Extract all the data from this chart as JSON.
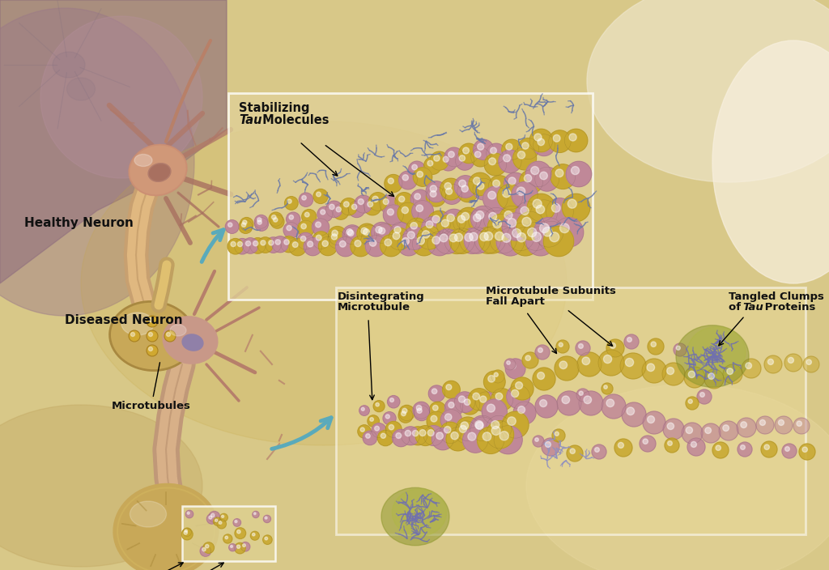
{
  "bg_main": "#d4b870",
  "bg_light": "#f0e8c8",
  "bg_purple": "#9a7888",
  "bg_cream": "#e8d898",
  "colors": {
    "yellow_sphere": "#c8a830",
    "yellow_sphere2": "#d4b840",
    "pink_sphere": "#c08898",
    "pink_sphere2": "#d098a8",
    "tau_blue": "#6878a8",
    "tau_tangle": "#8888bb",
    "tau_bg": "#a8b840",
    "neuron_skin": "#c8907a",
    "neuron_light": "#e0b090",
    "neuron_dark": "#a07060",
    "axon_tan": "#c8a870",
    "axon_dark": "#a88850",
    "label_text": "#111111",
    "box_white": "#ffffff",
    "arrow_teal": "#5aaabb"
  },
  "labels": {
    "healthy_neuron": "Healthy Neuron",
    "microtubules": "Microtubules",
    "stabilizing_tau": "Stabilizing\nTau Molecules",
    "diseased_neuron": "Diseased Neuron",
    "disintegrating_mt_label": "Disintegrating\nMicrotubules",
    "disintegrating_mt2": "Disintegrating\nMicrotubule",
    "mt_subunits": "Microtubule Subunits\nFall Apart",
    "tangled_clumps": "Tangled Clumps\nof Tau Proteins"
  }
}
